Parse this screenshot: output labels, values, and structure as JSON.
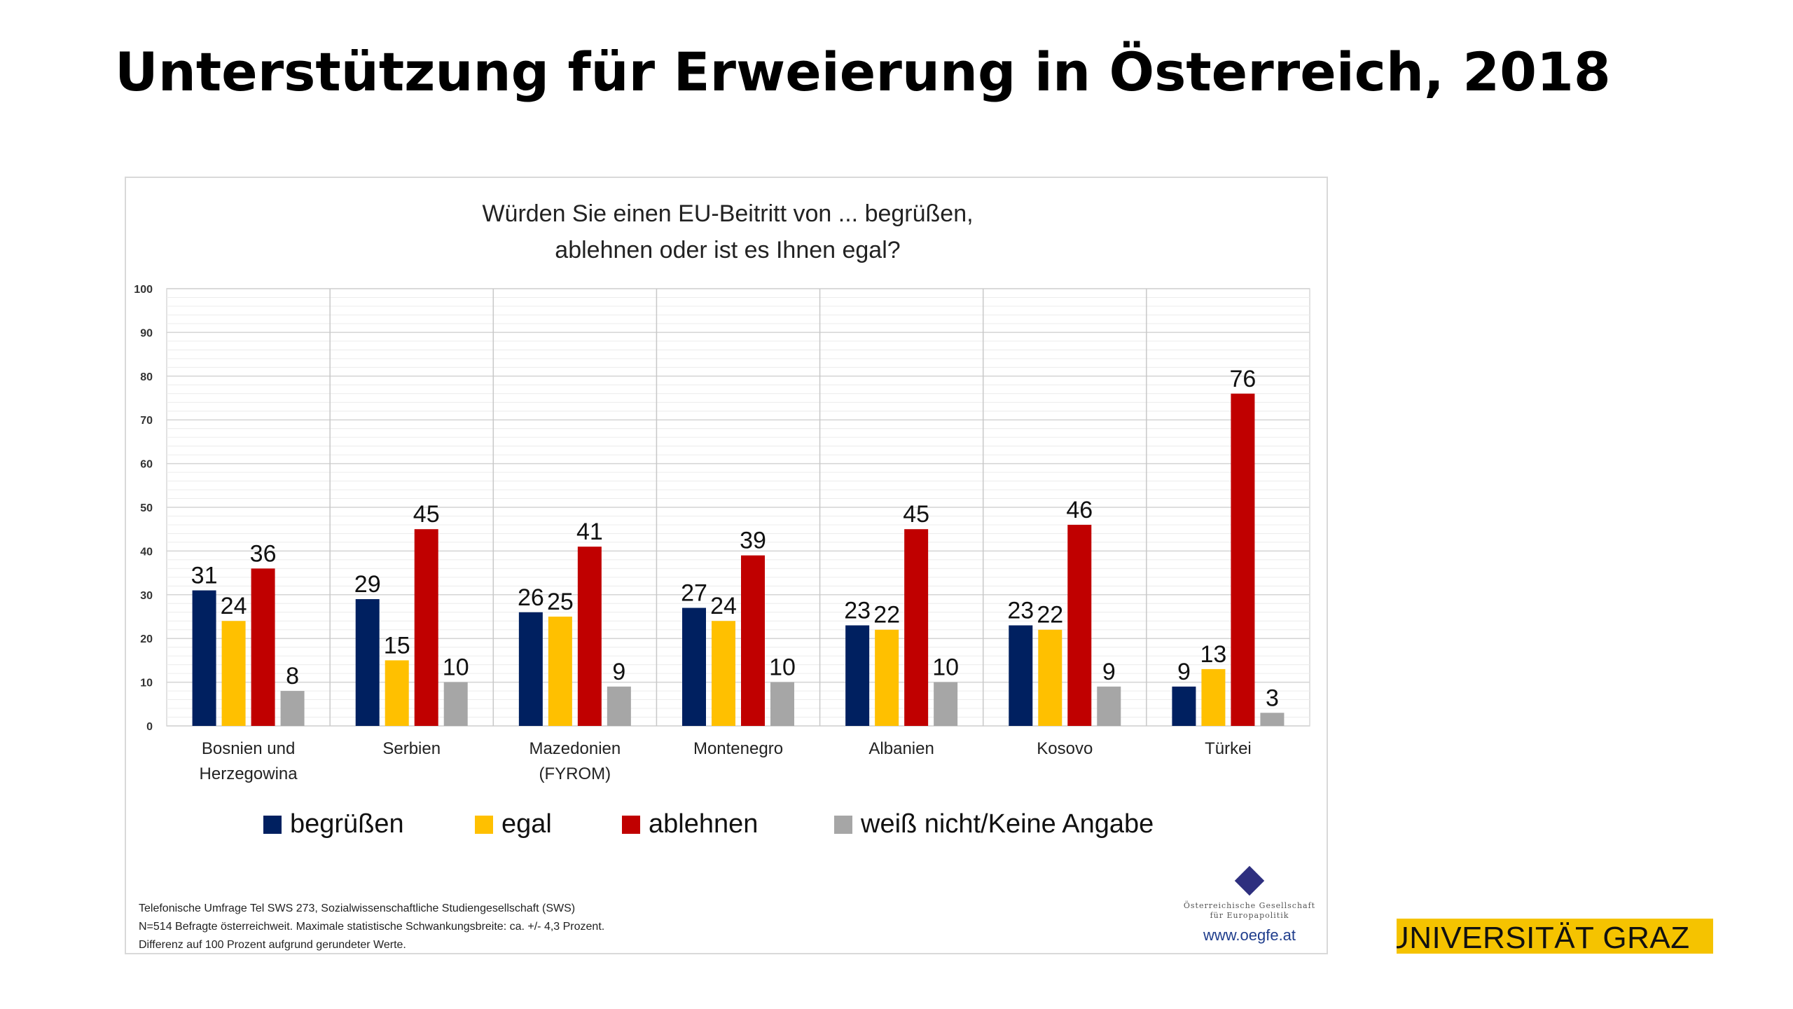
{
  "slide": {
    "title": "Unterstützung für Erweierung in Österreich, 2018"
  },
  "chart_data": {
    "type": "bar",
    "title": "Würden Sie einen EU-Beitritt von ... begrüßen,",
    "title_line2": "ablehnen oder ist es Ihnen egal?",
    "categories": [
      [
        "Bosnien und",
        "Herzegowina"
      ],
      [
        "Serbien"
      ],
      [
        "Mazedonien",
        "(FYROM)"
      ],
      [
        "Montenegro"
      ],
      [
        "Albanien"
      ],
      [
        "Kosovo"
      ],
      [
        "Türkei"
      ]
    ],
    "series": [
      {
        "name": "begrüßen",
        "color": "#002060",
        "values": [
          31,
          29,
          26,
          27,
          23,
          23,
          9
        ]
      },
      {
        "name": "egal",
        "color": "#ffc000",
        "values": [
          24,
          15,
          25,
          24,
          22,
          22,
          13
        ]
      },
      {
        "name": "ablehnen",
        "color": "#c00000",
        "values": [
          36,
          45,
          41,
          39,
          45,
          46,
          76
        ]
      },
      {
        "name": "weiß nicht/Keine Angabe",
        "color": "#a6a6a6",
        "values": [
          8,
          10,
          9,
          10,
          10,
          9,
          3
        ]
      }
    ],
    "ylim": [
      0,
      100
    ],
    "yticks": [
      0,
      10,
      20,
      30,
      40,
      50,
      60,
      70,
      80,
      90,
      100
    ],
    "grid": true,
    "legend_position": "bottom"
  },
  "footnote": {
    "line1": "Telefonische Umfrage Tel SWS 273, Sozialwissenschaftliche Studiengesellschaft (SWS)",
    "line2": "N=514 Befragte österreichweit. Maximale statistische Schwankungsbreite: ca. +/- 4,3 Prozent.",
    "line3": "Differenz auf 100 Prozent aufgrund gerundeter Werte."
  },
  "oegfe": {
    "name_line1": "Österreichische Gesellschaft",
    "name_line2": "für Europapolitik",
    "url": "www.oegfe.at",
    "logo_color": "#2e2f7f"
  },
  "university": {
    "name": "UNIVERSITÄT GRAZ",
    "color": "#f5c300"
  }
}
